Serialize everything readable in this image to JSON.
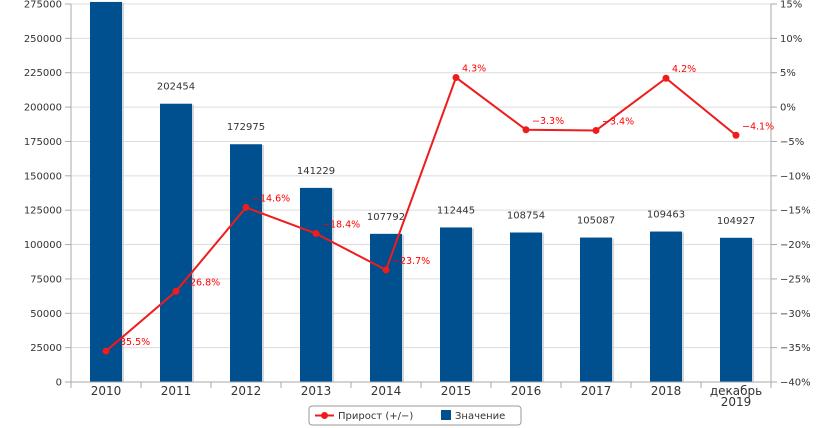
{
  "chart_data": {
    "type": "bar",
    "categories": [
      "2010",
      "2011",
      "2012",
      "2013",
      "2014",
      "2015",
      "2016",
      "2017",
      "2018",
      "декабрь 2019"
    ],
    "category_lines": [
      [
        "2010"
      ],
      [
        "2011"
      ],
      [
        "2012"
      ],
      [
        "2013"
      ],
      [
        "2014"
      ],
      [
        "2015"
      ],
      [
        "2016"
      ],
      [
        "2017"
      ],
      [
        "2018"
      ],
      [
        "декабрь",
        "2019"
      ]
    ],
    "series": [
      {
        "name": "Значение",
        "type": "bar",
        "axis": "left",
        "color": "#004f8f",
        "values": [
          276500,
          202454,
          172975,
          141229,
          107792,
          112445,
          108754,
          105087,
          109463,
          104927
        ],
        "labels": [
          "",
          "202454",
          "172975",
          "141229",
          "107792",
          "112445",
          "108754",
          "105087",
          "109463",
          "104927"
        ]
      },
      {
        "name": "Прирост (+/−)",
        "type": "line",
        "axis": "right",
        "color": "#ee1c1c",
        "values": [
          -35.5,
          -26.8,
          -14.6,
          -18.4,
          -23.7,
          4.3,
          -3.3,
          -3.4,
          4.2,
          -4.1
        ],
        "labels": [
          "−35.5%",
          "−26.8%",
          "−14.6%",
          "−18.4%",
          "−23.7%",
          "4.3%",
          "−3.3%",
          "−3.4%",
          "4.2%",
          "−4.1%"
        ]
      }
    ],
    "y_left": {
      "min": 0,
      "max": 275000,
      "ticks": [
        "0",
        "25000",
        "50000",
        "75000",
        "100000",
        "125000",
        "150000",
        "175000",
        "200000",
        "225000",
        "250000",
        "275000"
      ]
    },
    "y_right": {
      "min": -40,
      "max": 15,
      "ticks": [
        "−40%",
        "−35%",
        "−30%",
        "−25%",
        "−20%",
        "−15%",
        "−10%",
        "−5%",
        "0%",
        "5%",
        "10%",
        "15%"
      ]
    },
    "grid": true,
    "legend": {
      "position": "bottom-center",
      "items": [
        "Прирост (+/−)",
        "Значение"
      ]
    }
  }
}
